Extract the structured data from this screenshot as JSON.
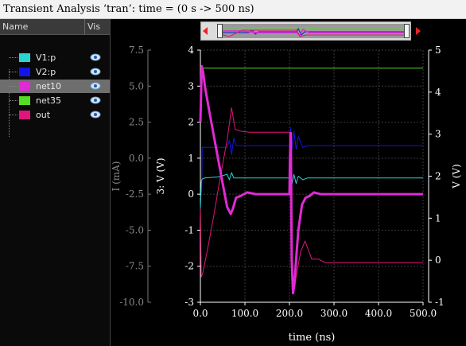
{
  "window": {
    "title": "Transient Analysis ‘tran’: time = (0 s -> 500 ns)"
  },
  "signal_list": {
    "columns": {
      "name": "Name",
      "vis": "Vis"
    },
    "items": [
      {
        "label": "V1:p",
        "color": "#2ad4d4",
        "selected": false
      },
      {
        "label": "V2:p",
        "color": "#1414e6",
        "selected": false
      },
      {
        "label": "net10",
        "color": "#e02ad4",
        "selected": true
      },
      {
        "label": "net35",
        "color": "#55dd22",
        "selected": false
      },
      {
        "label": "out",
        "color": "#e0157a",
        "selected": false
      }
    ]
  },
  "chart_data": {
    "type": "line",
    "xlabel": "time (ns)",
    "xlim": [
      0,
      500
    ],
    "x_ticks": [
      "0.0",
      "100.0",
      "200.0",
      "300.0",
      "400.0",
      "500.0"
    ],
    "axes": {
      "current": {
        "label": "I (mA)",
        "lim": [
          -10,
          7.5
        ],
        "ticks": [
          "7.5",
          "5.0",
          "2.5",
          "0.0",
          "-2.5",
          "-5.0",
          "-7.5",
          "-10.0"
        ],
        "color": "#888888"
      },
      "v3": {
        "label": "3: V (V)",
        "lim": [
          -3,
          4
        ],
        "ticks": [
          "4",
          "3",
          "2",
          "1",
          "0",
          "-1",
          "-2",
          "-3"
        ],
        "color": "#ffffff"
      },
      "v_right": {
        "label": "V (V)",
        "lim": [
          -1,
          5
        ],
        "ticks": [
          "5",
          "4",
          "3",
          "2",
          "1",
          "0",
          "-1"
        ],
        "color": "#ffffff"
      }
    },
    "grid": true,
    "series": [
      {
        "name": "net35",
        "color": "#55dd22",
        "axis": "v3",
        "x": [
          0,
          500
        ],
        "y": [
          3.5,
          3.5
        ]
      },
      {
        "name": "V2:p",
        "color": "#1414e6",
        "axis": "v3",
        "x": [
          0,
          3,
          4,
          60,
          65,
          70,
          75,
          80,
          200,
          203,
          205,
          210,
          215,
          220,
          230,
          240,
          500
        ],
        "y": [
          -0.1,
          0.1,
          1.3,
          1.3,
          1.5,
          1.1,
          1.55,
          1.35,
          1.35,
          1.85,
          1.2,
          1.75,
          1.25,
          1.6,
          1.3,
          1.35,
          1.35
        ]
      },
      {
        "name": "out",
        "color": "#e0157a",
        "axis": "v3",
        "x": [
          0,
          2,
          5,
          15,
          30,
          45,
          60,
          70,
          78,
          90,
          110,
          140,
          200,
          202,
          205,
          208,
          215,
          225,
          235,
          250,
          265,
          280,
          300,
          500
        ],
        "y": [
          -0.3,
          -2.3,
          -2.2,
          -1.6,
          -0.6,
          0.5,
          1.5,
          2.4,
          1.8,
          1.75,
          1.72,
          1.72,
          1.72,
          0.4,
          -2.35,
          -2.7,
          -2.3,
          -1.6,
          -1.3,
          -1.8,
          -1.8,
          -1.9,
          -1.9,
          -1.9
        ]
      },
      {
        "name": "V1:p",
        "color": "#2ad4d4",
        "axis": "v3",
        "x": [
          0,
          2,
          4,
          10,
          40,
          60,
          65,
          70,
          75,
          80,
          200,
          203,
          206,
          210,
          215,
          220,
          230,
          240,
          500
        ],
        "y": [
          -0.4,
          0.35,
          0.42,
          0.45,
          0.48,
          0.55,
          0.4,
          0.6,
          0.45,
          0.45,
          0.45,
          0.65,
          0.3,
          0.55,
          0.3,
          0.5,
          0.4,
          0.45,
          0.45
        ]
      },
      {
        "name": "net10",
        "color": "#e02ad4",
        "axis": "v3",
        "x": [
          0,
          3,
          6,
          10,
          20,
          35,
          50,
          60,
          68,
          73,
          80,
          90,
          105,
          125,
          150,
          200,
          201,
          203,
          205,
          208,
          211,
          215,
          220,
          228,
          236,
          245,
          255,
          270,
          300,
          500
        ],
        "y": [
          2.0,
          3.55,
          3.4,
          3.0,
          2.3,
          1.3,
          0.3,
          -0.35,
          -0.55,
          -0.4,
          -0.1,
          -0.05,
          0.05,
          0.0,
          0.0,
          0.0,
          1.0,
          1.7,
          -1.8,
          -2.75,
          -2.5,
          -1.8,
          -1.0,
          -0.3,
          -0.1,
          -0.05,
          0.05,
          0.0,
          0.0,
          0.0
        ]
      }
    ]
  }
}
